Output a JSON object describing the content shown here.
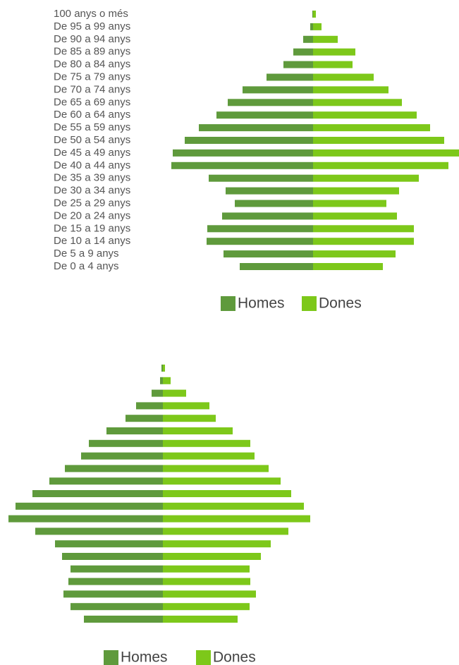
{
  "chart_data": [
    {
      "type": "pyramid",
      "categories": [
        "100 anys o més",
        "De 95 a 99 anys",
        "De 90 a 94 anys",
        "De 85 a 89 anys",
        "De 80 a 84 anys",
        "De 75 a 79 anys",
        "De 70 a 74 anys",
        "De 65 a 69 anys",
        "De 60 a 64 anys",
        "De 55 a 59 anys",
        "De 50 a 54 anys",
        "De 45 a 49 anys",
        "De 40 a 44 anys",
        "De 35 a 39 anys",
        "De 30 a 34 anys",
        "De 25 a 29 anys",
        "De 20 a 24 anys",
        "De 15 a 19 anys",
        "De 10 a 14 anys",
        "De 5 a 9 anys",
        "De 0 a 4 anys"
      ],
      "series": [
        {
          "name": "Homes",
          "color": "#5f9a3c",
          "values": [
            1,
            4,
            14,
            28,
            42,
            66,
            100,
            121,
            137,
            162,
            182,
            199,
            201,
            148,
            124,
            111,
            129,
            150,
            151,
            127,
            104
          ]
        },
        {
          "name": "Dones",
          "color": "#7dc81a",
          "values": [
            4,
            12,
            35,
            60,
            56,
            86,
            107,
            126,
            147,
            166,
            186,
            207,
            192,
            150,
            122,
            104,
            119,
            143,
            143,
            117,
            99
          ]
        }
      ]
    },
    {
      "type": "pyramid",
      "categories": [
        null,
        null,
        null,
        null,
        null,
        null,
        null,
        null,
        null,
        null,
        null,
        null,
        null,
        null,
        null,
        null,
        null,
        null,
        null,
        null,
        null
      ],
      "series": [
        {
          "name": "Homes",
          "color": "#5f9a3c",
          "values": [
            2,
            4,
            16,
            38,
            53,
            80,
            105,
            116,
            139,
            161,
            185,
            209,
            219,
            181,
            153,
            143,
            131,
            134,
            141,
            131,
            112
          ]
        },
        {
          "name": "Dones",
          "color": "#7dc81a",
          "values": [
            3,
            11,
            33,
            66,
            75,
            99,
            124,
            130,
            150,
            167,
            182,
            200,
            209,
            178,
            153,
            139,
            123,
            124,
            132,
            123,
            106
          ]
        }
      ]
    }
  ]
}
